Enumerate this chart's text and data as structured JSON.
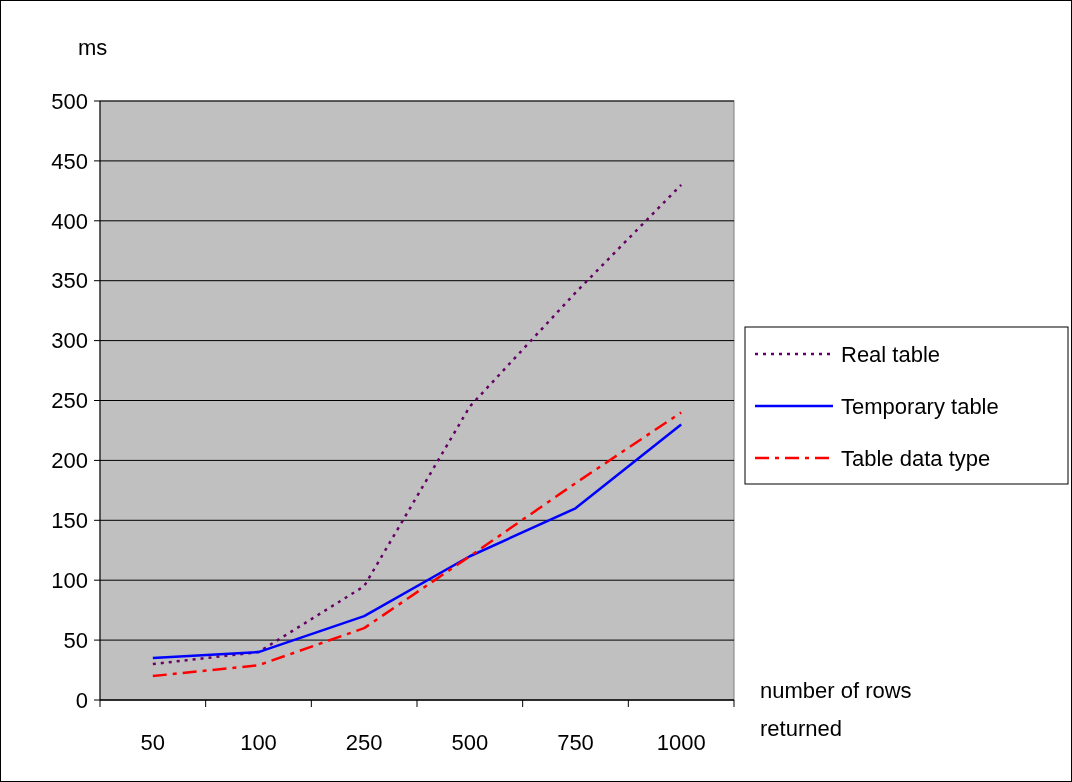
{
  "chart_data": {
    "type": "line",
    "ylabel": "ms",
    "xlabel": "number of rows returned",
    "categories": [
      "50",
      "100",
      "250",
      "500",
      "750",
      "1000"
    ],
    "series": [
      {
        "name": "Real table",
        "color": "#660066",
        "line_style": "dotted",
        "values": [
          30,
          40,
          95,
          245,
          340,
          430
        ]
      },
      {
        "name": "Temporary table",
        "color": "#0000ff",
        "line_style": "solid",
        "values": [
          35,
          40,
          70,
          120,
          160,
          230
        ]
      },
      {
        "name": "Table data type",
        "color": "#ff0000",
        "line_style": "dashdot",
        "values": [
          20,
          29,
          60,
          120,
          181,
          240
        ]
      }
    ],
    "ylim": [
      0,
      500
    ],
    "yticks": [
      0,
      50,
      100,
      150,
      200,
      250,
      300,
      350,
      400,
      450,
      500
    ],
    "grid": "y",
    "legend": "right"
  }
}
